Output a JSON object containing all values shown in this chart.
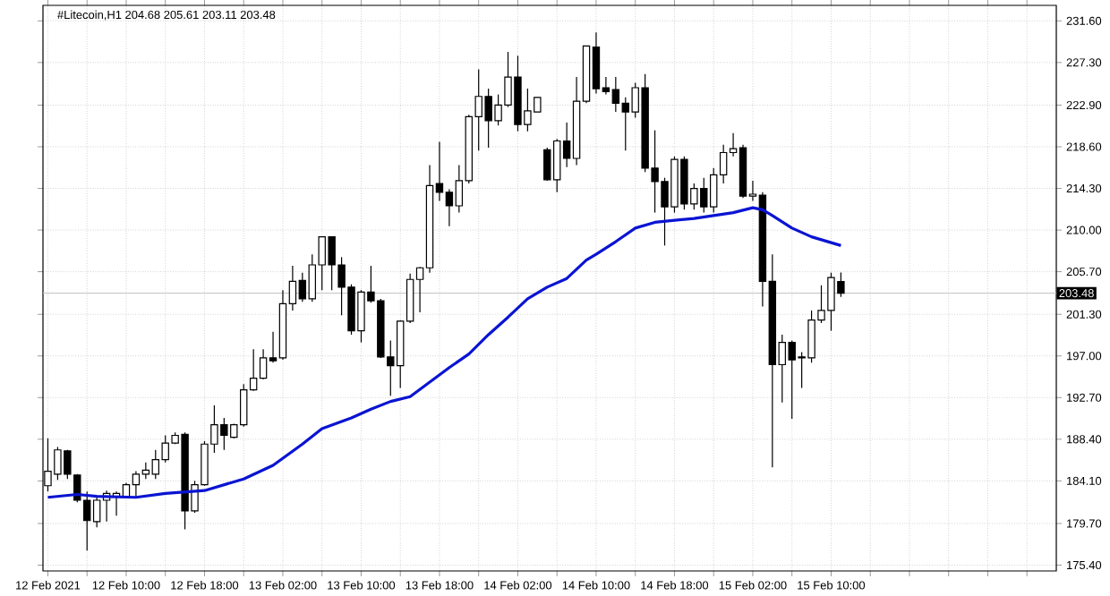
{
  "chart_data": {
    "type": "candlestick",
    "title": "#Litecoin,H1  204.68 205.61 203.11 203.48",
    "x": [
      "2021-02-12T02:00",
      "2021-02-12T03:00",
      "2021-02-12T04:00",
      "2021-02-12T05:00",
      "2021-02-12T06:00",
      "2021-02-12T07:00",
      "2021-02-12T08:00",
      "2021-02-12T09:00",
      "2021-02-12T10:00",
      "2021-02-12T11:00",
      "2021-02-12T12:00",
      "2021-02-12T13:00",
      "2021-02-12T14:00",
      "2021-02-12T15:00",
      "2021-02-12T16:00",
      "2021-02-12T17:00",
      "2021-02-12T18:00",
      "2021-02-12T19:00",
      "2021-02-12T20:00",
      "2021-02-12T21:00",
      "2021-02-12T22:00",
      "2021-02-12T23:00",
      "2021-02-13T00:00",
      "2021-02-13T01:00",
      "2021-02-13T02:00",
      "2021-02-13T03:00",
      "2021-02-13T04:00",
      "2021-02-13T05:00",
      "2021-02-13T06:00",
      "2021-02-13T07:00",
      "2021-02-13T08:00",
      "2021-02-13T09:00",
      "2021-02-13T10:00",
      "2021-02-13T11:00",
      "2021-02-13T12:00",
      "2021-02-13T13:00",
      "2021-02-13T14:00",
      "2021-02-13T15:00",
      "2021-02-13T16:00",
      "2021-02-13T17:00",
      "2021-02-13T18:00",
      "2021-02-13T19:00",
      "2021-02-13T20:00",
      "2021-02-13T21:00",
      "2021-02-13T22:00",
      "2021-02-13T23:00",
      "2021-02-14T00:00",
      "2021-02-14T01:00",
      "2021-02-14T02:00",
      "2021-02-14T03:00",
      "2021-02-14T04:00",
      "2021-02-14T05:00",
      "2021-02-14T06:00",
      "2021-02-14T07:00",
      "2021-02-14T08:00",
      "2021-02-14T09:00",
      "2021-02-14T10:00",
      "2021-02-14T11:00",
      "2021-02-14T12:00",
      "2021-02-14T13:00",
      "2021-02-14T14:00",
      "2021-02-14T15:00",
      "2021-02-14T16:00",
      "2021-02-14T17:00",
      "2021-02-14T18:00",
      "2021-02-14T19:00",
      "2021-02-14T20:00",
      "2021-02-14T21:00",
      "2021-02-14T22:00",
      "2021-02-14T23:00",
      "2021-02-15T00:00",
      "2021-02-15T01:00",
      "2021-02-15T02:00",
      "2021-02-15T03:00",
      "2021-02-15T04:00",
      "2021-02-15T05:00",
      "2021-02-15T06:00",
      "2021-02-15T07:00",
      "2021-02-15T08:00",
      "2021-02-15T09:00",
      "2021-02-15T10:00",
      "2021-02-15T11:00"
    ],
    "ohlc": [
      [
        183.6,
        188.5,
        183.0,
        185.1
      ],
      [
        184.8,
        187.6,
        184.2,
        187.3
      ],
      [
        187.2,
        187.3,
        184.3,
        184.8
      ],
      [
        184.7,
        184.8,
        181.9,
        182.1
      ],
      [
        182.1,
        183.0,
        176.9,
        180.0
      ],
      [
        179.9,
        182.4,
        179.3,
        182.1
      ],
      [
        182.1,
        183.1,
        179.9,
        182.8
      ],
      [
        182.5,
        183.0,
        180.5,
        182.8
      ],
      [
        182.4,
        183.9,
        182.4,
        183.7
      ],
      [
        183.7,
        185.1,
        182.4,
        184.8
      ],
      [
        184.8,
        186.0,
        184.3,
        185.2
      ],
      [
        184.8,
        187.3,
        184.3,
        186.3
      ],
      [
        186.3,
        188.8,
        186.0,
        188.0
      ],
      [
        188.0,
        189.1,
        187.9,
        188.8
      ],
      [
        188.9,
        189.1,
        179.1,
        181.0
      ],
      [
        181.0,
        184.1,
        180.8,
        183.7
      ],
      [
        183.7,
        188.2,
        183.6,
        187.9
      ],
      [
        187.9,
        191.9,
        187.0,
        189.9
      ],
      [
        189.9,
        190.6,
        187.3,
        188.8
      ],
      [
        188.6,
        190.0,
        188.5,
        189.9
      ],
      [
        189.9,
        194.1,
        189.7,
        193.5
      ],
      [
        193.5,
        197.7,
        193.4,
        194.7
      ],
      [
        194.7,
        197.7,
        194.6,
        196.8
      ],
      [
        196.8,
        199.5,
        196.3,
        196.5
      ],
      [
        196.8,
        203.8,
        196.6,
        202.4
      ],
      [
        202.4,
        206.3,
        201.7,
        204.7
      ],
      [
        204.8,
        205.6,
        202.6,
        202.9
      ],
      [
        202.9,
        207.5,
        202.6,
        206.4
      ],
      [
        206.4,
        209.3,
        203.8,
        209.3
      ],
      [
        209.3,
        209.3,
        203.8,
        206.4
      ],
      [
        206.4,
        207.2,
        201.2,
        204.1
      ],
      [
        204.1,
        204.4,
        199.2,
        199.6
      ],
      [
        199.6,
        203.8,
        198.4,
        203.6
      ],
      [
        203.6,
        206.3,
        202.5,
        202.7
      ],
      [
        202.7,
        202.9,
        196.8,
        196.9
      ],
      [
        196.9,
        198.6,
        192.9,
        196.0
      ],
      [
        196.0,
        200.7,
        193.7,
        200.6
      ],
      [
        200.6,
        205.5,
        200.4,
        204.9
      ],
      [
        204.9,
        206.2,
        201.5,
        206.1
      ],
      [
        206.1,
        216.7,
        205.6,
        214.6
      ],
      [
        214.8,
        219.1,
        213.0,
        213.9
      ],
      [
        213.9,
        214.2,
        210.4,
        212.5
      ],
      [
        212.5,
        216.7,
        211.8,
        215.1
      ],
      [
        215.1,
        221.9,
        214.8,
        221.7
      ],
      [
        221.7,
        226.6,
        218.2,
        223.8
      ],
      [
        223.8,
        224.6,
        218.5,
        221.3
      ],
      [
        221.3,
        224.0,
        220.8,
        222.9
      ],
      [
        222.9,
        228.4,
        222.7,
        225.8
      ],
      [
        225.8,
        228.0,
        220.2,
        220.9
      ],
      [
        220.9,
        224.6,
        220.2,
        222.3
      ],
      [
        222.2,
        223.7,
        222.2,
        223.7
      ],
      [
        218.3,
        218.5,
        215.1,
        215.2
      ],
      [
        215.2,
        219.4,
        213.9,
        219.2
      ],
      [
        219.2,
        221.1,
        216.5,
        217.4
      ],
      [
        217.4,
        225.8,
        216.7,
        223.3
      ],
      [
        223.3,
        229.0,
        223.1,
        229.0
      ],
      [
        228.9,
        230.4,
        224.1,
        224.6
      ],
      [
        224.7,
        225.8,
        224.0,
        224.3
      ],
      [
        224.5,
        225.8,
        222.2,
        223.1
      ],
      [
        223.1,
        223.7,
        218.2,
        222.2
      ],
      [
        222.2,
        225.2,
        221.6,
        224.7
      ],
      [
        224.7,
        226.1,
        216.0,
        216.4
      ],
      [
        216.4,
        220.3,
        211.8,
        215.0
      ],
      [
        215.0,
        215.4,
        208.4,
        212.4
      ],
      [
        212.4,
        217.6,
        211.8,
        217.3
      ],
      [
        217.3,
        217.6,
        212.1,
        212.7
      ],
      [
        212.7,
        214.8,
        212.1,
        214.3
      ],
      [
        214.3,
        215.4,
        211.8,
        212.4
      ],
      [
        212.4,
        216.4,
        211.8,
        215.7
      ],
      [
        215.7,
        218.8,
        214.8,
        218.0
      ],
      [
        218.0,
        220.0,
        217.6,
        218.4
      ],
      [
        218.5,
        218.8,
        213.3,
        213.5
      ],
      [
        213.5,
        215.1,
        213.0,
        213.7
      ],
      [
        213.6,
        213.9,
        202.1,
        204.7
      ],
      [
        204.7,
        207.5,
        185.5,
        196.1
      ],
      [
        196.1,
        199.2,
        192.2,
        198.4
      ],
      [
        198.4,
        198.6,
        190.5,
        196.6
      ],
      [
        196.9,
        197.4,
        193.7,
        196.8
      ],
      [
        196.8,
        201.7,
        196.3,
        200.7
      ],
      [
        200.7,
        204.3,
        200.4,
        201.7
      ],
      [
        201.7,
        205.6,
        199.6,
        205.1
      ],
      [
        204.68,
        205.61,
        203.11,
        203.48
      ]
    ],
    "series": [
      {
        "type": "line",
        "color": "#0a14d2",
        "x": [
          "2021-02-12T02:00",
          "2021-02-12T05:00",
          "2021-02-12T07:00",
          "2021-02-12T11:00",
          "2021-02-12T14:00",
          "2021-02-12T18:00",
          "2021-02-12T22:00",
          "2021-02-13T01:00",
          "2021-02-13T04:00",
          "2021-02-13T06:00",
          "2021-02-13T09:00",
          "2021-02-13T11:00",
          "2021-02-13T13:00",
          "2021-02-13T15:00",
          "2021-02-13T17:00",
          "2021-02-13T19:00",
          "2021-02-13T21:00",
          "2021-02-13T23:00",
          "2021-02-14T01:00",
          "2021-02-14T03:00",
          "2021-02-14T05:00",
          "2021-02-14T07:00",
          "2021-02-14T09:00",
          "2021-02-14T10:00",
          "2021-02-14T12:00",
          "2021-02-14T14:00",
          "2021-02-14T16:00",
          "2021-02-14T18:00",
          "2021-02-14T20:00",
          "2021-02-14T22:00",
          "2021-02-15T00:00",
          "2021-02-15T02:00",
          "2021-02-15T03:00",
          "2021-02-15T04:00",
          "2021-02-15T06:00",
          "2021-02-15T08:00",
          "2021-02-15T10:00",
          "2021-02-15T11:00"
        ],
        "values": [
          182.4,
          182.7,
          182.5,
          182.4,
          182.8,
          183.1,
          184.3,
          185.7,
          187.9,
          189.5,
          190.6,
          191.5,
          192.3,
          192.8,
          194.3,
          195.8,
          197.2,
          199.2,
          201.0,
          202.9,
          204.1,
          205.0,
          206.9,
          207.5,
          208.8,
          210.2,
          210.8,
          211.0,
          211.2,
          211.5,
          211.8,
          212.3,
          212.1,
          211.5,
          210.2,
          209.3,
          208.7,
          208.4
        ]
      }
    ],
    "xlim": [
      "2021-02-12T01:30",
      "2021-02-16T09:00"
    ],
    "xticks": [
      {
        "value": "2021-02-12T02:00",
        "label": "12 Feb 2021"
      },
      {
        "value": "2021-02-12T06:00",
        "label": null
      },
      {
        "value": "2021-02-12T10:00",
        "label": "12 Feb 10:00"
      },
      {
        "value": "2021-02-12T14:00",
        "label": null
      },
      {
        "value": "2021-02-12T18:00",
        "label": "12 Feb 18:00"
      },
      {
        "value": "2021-02-12T22:00",
        "label": null
      },
      {
        "value": "2021-02-13T02:00",
        "label": "13 Feb 02:00"
      },
      {
        "value": "2021-02-13T06:00",
        "label": null
      },
      {
        "value": "2021-02-13T10:00",
        "label": "13 Feb 10:00"
      },
      {
        "value": "2021-02-13T14:00",
        "label": null
      },
      {
        "value": "2021-02-13T18:00",
        "label": "13 Feb 18:00"
      },
      {
        "value": "2021-02-13T22:00",
        "label": null
      },
      {
        "value": "2021-02-14T02:00",
        "label": "14 Feb 02:00"
      },
      {
        "value": "2021-02-14T06:00",
        "label": null
      },
      {
        "value": "2021-02-14T10:00",
        "label": "14 Feb 10:00"
      },
      {
        "value": "2021-02-14T14:00",
        "label": null
      },
      {
        "value": "2021-02-14T18:00",
        "label": "14 Feb 18:00"
      },
      {
        "value": "2021-02-14T22:00",
        "label": null
      },
      {
        "value": "2021-02-15T02:00",
        "label": "15 Feb 02:00"
      },
      {
        "value": "2021-02-15T06:00",
        "label": null
      },
      {
        "value": "2021-02-15T10:00",
        "label": "15 Feb 10:00"
      },
      {
        "value": "2021-02-15T14:00",
        "label": null
      },
      {
        "value": "2021-02-15T18:00",
        "label": null
      },
      {
        "value": "2021-02-15T22:00",
        "label": null
      },
      {
        "value": "2021-02-16T02:00",
        "label": null
      },
      {
        "value": "2021-02-16T06:00",
        "label": null
      }
    ],
    "ylim": [
      174.8,
      233.2
    ],
    "yticks": [
      {
        "value": 175.4,
        "label": "175.40"
      },
      {
        "value": 179.7,
        "label": "179.70"
      },
      {
        "value": 184.1,
        "label": "184.10"
      },
      {
        "value": 188.4,
        "label": "188.40"
      },
      {
        "value": 192.7,
        "label": "192.70"
      },
      {
        "value": 197.0,
        "label": "197.00"
      },
      {
        "value": 201.3,
        "label": "201.30"
      },
      {
        "value": 205.7,
        "label": "205.70"
      },
      {
        "value": 210.0,
        "label": "210.00"
      },
      {
        "value": 214.3,
        "label": "214.30"
      },
      {
        "value": 218.6,
        "label": "218.60"
      },
      {
        "value": 222.9,
        "label": "222.90"
      },
      {
        "value": 227.3,
        "label": "227.30"
      },
      {
        "value": 231.6,
        "label": "231.60"
      }
    ],
    "ref_lines": [
      {
        "axis": "y",
        "value": 203.48,
        "label": "203.48",
        "color": "#c0c0c0"
      }
    ],
    "grid": true
  }
}
